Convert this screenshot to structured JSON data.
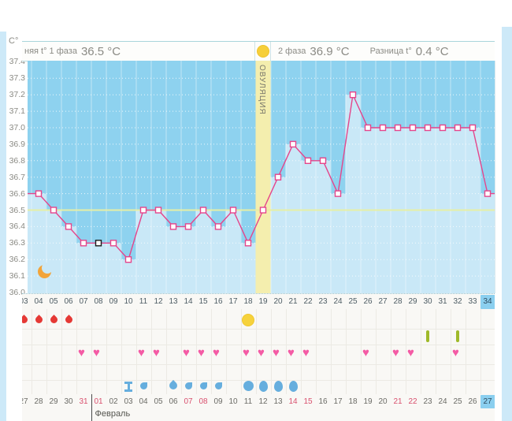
{
  "header": {
    "yaxis_unit": "C°",
    "phase1_label": "няя t° 1 фаза",
    "phase1_value": "36.5 °C",
    "phase2_label": "2 фаза",
    "phase2_value": "36.9 °C",
    "diff_label": "Разница t°",
    "diff_value": "0.4 °C"
  },
  "chart_data": {
    "type": "line",
    "ylabel": "C°",
    "ylim": [
      36.0,
      37.4
    ],
    "ytick_step": 0.1,
    "yticks": [
      "36.0",
      "36.1",
      "36.2",
      "36.3",
      "36.4",
      "36.5",
      "36.6",
      "36.7",
      "36.8",
      "36.9",
      "37.0",
      "37.1",
      "37.2",
      "37.3",
      "37.4"
    ],
    "coverline": 36.5,
    "x_cycle_days": [
      3,
      4,
      5,
      6,
      7,
      8,
      9,
      10,
      11,
      12,
      13,
      14,
      15,
      16,
      17,
      18,
      19,
      20,
      21,
      22,
      23,
      24,
      25,
      26,
      27,
      28,
      29,
      30,
      31,
      32,
      33,
      34
    ],
    "temps": [
      36.6,
      36.6,
      36.5,
      36.4,
      36.3,
      36.3,
      36.3,
      36.2,
      36.5,
      36.5,
      36.4,
      36.4,
      36.5,
      36.4,
      36.5,
      36.3,
      36.5,
      36.7,
      36.9,
      36.8,
      36.8,
      36.6,
      37.2,
      37.0,
      37.0,
      37.0,
      37.0,
      37.0,
      37.0,
      37.0,
      37.0,
      36.6
    ],
    "selected_day": 8,
    "ovulation_band_day": 19,
    "ovulation_band_label": "ОВУЛЯЦИЯ",
    "phase2_day_labels": [
      "01",
      "02",
      "03",
      "04",
      "05",
      "06",
      "07",
      "08",
      "09",
      "10",
      "11",
      "12",
      "13",
      "14",
      "15"
    ],
    "phase2_start_day": 20,
    "moon_day": 4,
    "grid": "dotted-horizontal",
    "legend_position": "none"
  },
  "rows": {
    "cycle_day_first": 3,
    "cycle_day_last": 34,
    "cycle_day_highlight": 34,
    "menstruation_days": [
      3,
      4,
      5,
      6
    ],
    "ovulation_circle_day": 18,
    "opk_green_days": [
      30,
      32
    ],
    "intercourse_days": [
      7,
      8,
      11,
      12,
      14,
      15,
      16,
      18,
      19,
      20,
      21,
      22,
      26,
      28,
      29,
      32
    ],
    "fluid_icons": [
      {
        "day": 10,
        "type": "cursor"
      },
      {
        "day": 11,
        "type": "comma"
      },
      {
        "day": 13,
        "type": "drop"
      },
      {
        "day": 14,
        "type": "comma"
      },
      {
        "day": 15,
        "type": "comma"
      },
      {
        "day": 16,
        "type": "comma"
      },
      {
        "day": 18,
        "type": "circle"
      },
      {
        "day": 19,
        "type": "egg"
      },
      {
        "day": 20,
        "type": "egg"
      },
      {
        "day": 21,
        "type": "egg"
      }
    ]
  },
  "dates": {
    "items": [
      {
        "day": 3,
        "label": "27",
        "red": false
      },
      {
        "day": 4,
        "label": "28",
        "red": false
      },
      {
        "day": 5,
        "label": "29",
        "red": false
      },
      {
        "day": 6,
        "label": "30",
        "red": false
      },
      {
        "day": 7,
        "label": "31",
        "red": true
      },
      {
        "day": 8,
        "label": "01",
        "red": true
      },
      {
        "day": 9,
        "label": "02",
        "red": false
      },
      {
        "day": 10,
        "label": "03",
        "red": false
      },
      {
        "day": 11,
        "label": "04",
        "red": false
      },
      {
        "day": 12,
        "label": "05",
        "red": false
      },
      {
        "day": 13,
        "label": "06",
        "red": false
      },
      {
        "day": 14,
        "label": "07",
        "red": true
      },
      {
        "day": 15,
        "label": "08",
        "red": true
      },
      {
        "day": 16,
        "label": "09",
        "red": false
      },
      {
        "day": 17,
        "label": "10",
        "red": false
      },
      {
        "day": 18,
        "label": "11",
        "red": false
      },
      {
        "day": 19,
        "label": "12",
        "red": false
      },
      {
        "day": 20,
        "label": "13",
        "red": false
      },
      {
        "day": 21,
        "label": "14",
        "red": true
      },
      {
        "day": 22,
        "label": "15",
        "red": true
      },
      {
        "day": 23,
        "label": "16",
        "red": false
      },
      {
        "day": 24,
        "label": "17",
        "red": false
      },
      {
        "day": 25,
        "label": "18",
        "red": false
      },
      {
        "day": 26,
        "label": "19",
        "red": false
      },
      {
        "day": 27,
        "label": "20",
        "red": false
      },
      {
        "day": 28,
        "label": "21",
        "red": true
      },
      {
        "day": 29,
        "label": "22",
        "red": true
      },
      {
        "day": 30,
        "label": "23",
        "red": false
      },
      {
        "day": 31,
        "label": "24",
        "red": false
      },
      {
        "day": 32,
        "label": "25",
        "red": false
      },
      {
        "day": 33,
        "label": "26",
        "red": false
      },
      {
        "day": 34,
        "label": "27",
        "red": false
      }
    ],
    "highlight_day": 34,
    "month_label": "Февраль",
    "month_divider_before_day": 8
  },
  "colors": {
    "plot_bg": "#8ed2ef",
    "plot_fill": "#c9e8f7",
    "ovulation_band": "#f4eeae",
    "coverline": "#e6efa5",
    "temp_line": "#e5458b",
    "selected_marker": "#1a1a1a",
    "menses_drop": "#e53935",
    "heart": "#f45ba5",
    "ovu_circle": "#f6d23c",
    "moon": "#f2a43a",
    "fluid_blue": "#66aede",
    "opk_green": "#9fb929",
    "highlight_blue": "#8bcfef",
    "weekend_red": "#d9506e"
  }
}
